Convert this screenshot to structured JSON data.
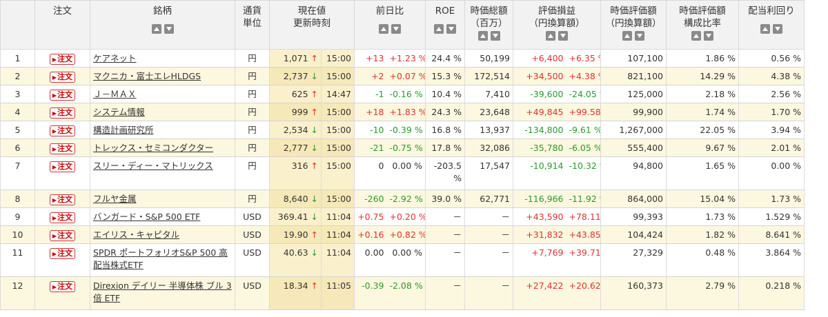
{
  "headers": {
    "no": "",
    "order": "注文",
    "name": "銘柄",
    "currency": "通貨\n単位",
    "price": "現在値\n更新時刻",
    "change": "前日比",
    "roe": "ROE",
    "marketcap": "時価総額\n（百万）",
    "pl": "評価損益\n（円換算額）",
    "value": "時価評価額\n（円換算額）",
    "ratio": "時価評価額\n構成比率",
    "yield": "配当利回り"
  },
  "order_label": "注文",
  "rows": [
    {
      "no": "1",
      "name": "ケアネット",
      "currency": "円",
      "price": "1,071",
      "dir": "up",
      "time": "15:00",
      "chg": "+13",
      "chgp": "+1.23 %",
      "chg_sign": "pos",
      "roe": "24.4 %",
      "cap": "50,199",
      "pl": "+6,400",
      "plp": "+6.35 %",
      "pl_sign": "pos",
      "value": "107,100",
      "ratio": "1.86 %",
      "yield": "0.56 %"
    },
    {
      "no": "2",
      "name": "マクニカ・富士エレHLDGS",
      "currency": "円",
      "price": "2,737",
      "dir": "down",
      "time": "15:00",
      "chg": "+2",
      "chgp": "+0.07 %",
      "chg_sign": "pos",
      "roe": "15.3 %",
      "cap": "172,514",
      "pl": "+34,500",
      "plp": "+4.38 %",
      "pl_sign": "pos",
      "value": "821,100",
      "ratio": "14.29 %",
      "yield": "4.38 %"
    },
    {
      "no": "3",
      "name": "Ｊ－ＭＡＸ",
      "currency": "円",
      "price": "625",
      "dir": "up",
      "time": "14:47",
      "chg": "-1",
      "chgp": "-0.16 %",
      "chg_sign": "neg",
      "roe": "10.4 %",
      "cap": "7,410",
      "pl": "-39,600",
      "plp": "-24.05 %",
      "pl_sign": "neg",
      "value": "125,000",
      "ratio": "2.18 %",
      "yield": "2.56 %"
    },
    {
      "no": "4",
      "name": "システム情報",
      "currency": "円",
      "price": "999",
      "dir": "up",
      "time": "15:00",
      "chg": "+18",
      "chgp": "+1.83 %",
      "chg_sign": "pos",
      "roe": "24.3 %",
      "cap": "23,648",
      "pl": "+49,845",
      "plp": "+99.58 %",
      "pl_sign": "pos",
      "value": "99,900",
      "ratio": "1.74 %",
      "yield": "1.70 %"
    },
    {
      "no": "5",
      "name": "構造計画研究所",
      "currency": "円",
      "price": "2,534",
      "dir": "down",
      "time": "15:00",
      "chg": "-10",
      "chgp": "-0.39 %",
      "chg_sign": "neg",
      "roe": "16.8 %",
      "cap": "13,937",
      "pl": "-134,800",
      "plp": "-9.61 %",
      "pl_sign": "neg",
      "value": "1,267,000",
      "ratio": "22.05 %",
      "yield": "3.94 %"
    },
    {
      "no": "6",
      "name": "トレックス・セミコンダクター",
      "currency": "円",
      "price": "2,777",
      "dir": "down",
      "time": "15:00",
      "chg": "-21",
      "chgp": "-0.75 %",
      "chg_sign": "neg",
      "roe": "17.8 %",
      "cap": "32,086",
      "pl": "-35,780",
      "plp": "-6.05 %",
      "pl_sign": "neg",
      "value": "555,400",
      "ratio": "9.67 %",
      "yield": "2.01 %"
    },
    {
      "no": "7",
      "name": "スリー・ディー・マトリックス",
      "currency": "円",
      "price": "316",
      "dir": "up",
      "time": "15:00",
      "chg": "0",
      "chgp": "0.00 %",
      "chg_sign": "zero",
      "roe": "-203.5 %",
      "cap": "17,547",
      "pl": "-10,914",
      "plp": "-10.32 %",
      "pl_sign": "neg",
      "value": "94,800",
      "ratio": "1.65 %",
      "yield": "0.00 %",
      "tall": true
    },
    {
      "no": "8",
      "name": "フルヤ金属",
      "currency": "円",
      "price": "8,640",
      "dir": "down",
      "time": "15:00",
      "chg": "-260",
      "chgp": "-2.92 %",
      "chg_sign": "neg",
      "roe": "39.0 %",
      "cap": "62,771",
      "pl": "-116,966",
      "plp": "-11.92 %",
      "pl_sign": "neg",
      "value": "864,000",
      "ratio": "15.04 %",
      "yield": "1.73 %"
    },
    {
      "no": "9",
      "name": "バンガード・S&P 500 ETF",
      "currency": "USD",
      "price": "369.41",
      "dir": "down",
      "time": "11:04",
      "chg": "+0.75",
      "chgp": "+0.20 %",
      "chg_sign": "pos",
      "roe": "－",
      "cap": "－",
      "pl": "+43,590",
      "plp": "+78.11 %",
      "pl_sign": "pos",
      "value": "99,393",
      "ratio": "1.73 %",
      "yield": "1.529 %"
    },
    {
      "no": "10",
      "name": "エイリス・キャピタル",
      "currency": "USD",
      "price": "19.90",
      "dir": "up",
      "time": "11:04",
      "chg": "+0.16",
      "chgp": "+0.82 %",
      "chg_sign": "pos",
      "roe": "－",
      "cap": "－",
      "pl": "+31,832",
      "plp": "+43.85 %",
      "pl_sign": "pos",
      "value": "104,424",
      "ratio": "1.82 %",
      "yield": "8.641 %"
    },
    {
      "no": "11",
      "name": "SPDR ポートフォリオS&P 500 高配当株式ETF",
      "currency": "USD",
      "price": "40.63",
      "dir": "down",
      "time": "11:04",
      "chg": "0.00",
      "chgp": "0.00 %",
      "chg_sign": "zero",
      "roe": "－",
      "cap": "－",
      "pl": "+7,769",
      "plp": "+39.71 %",
      "pl_sign": "pos",
      "value": "27,329",
      "ratio": "0.48 %",
      "yield": "3.864 %",
      "tall": true
    },
    {
      "no": "12",
      "name": "Direxion デイリー 半導体株 ブル 3倍 ETF",
      "currency": "USD",
      "price": "18.34",
      "dir": "up",
      "time": "11:05",
      "chg": "-0.39",
      "chgp": "-2.08 %",
      "chg_sign": "neg",
      "roe": "－",
      "cap": "－",
      "pl": "+27,422",
      "plp": "+20.62 %",
      "pl_sign": "pos",
      "value": "160,373",
      "ratio": "2.79 %",
      "yield": "0.218 %",
      "tall": true
    }
  ],
  "colors": {
    "positive": "#e03030",
    "negative": "#2a9a2a",
    "price_bg": "#fbf0cc"
  }
}
